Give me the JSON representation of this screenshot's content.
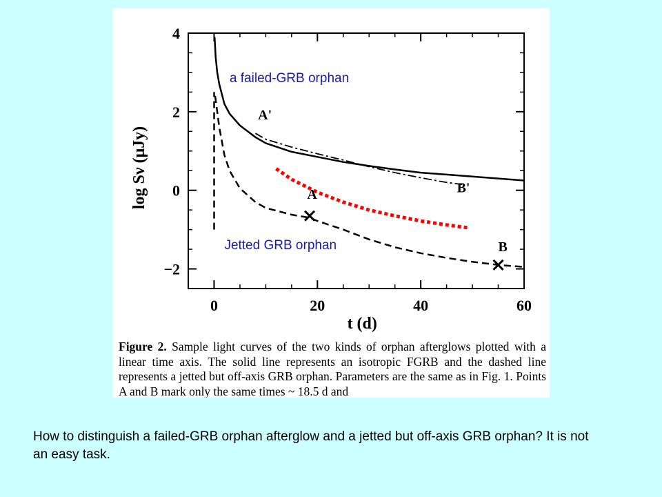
{
  "chart_data": {
    "type": "line",
    "xlabel": "t (d)",
    "ylabel": "log Sν (μJy)",
    "xlim": [
      -5,
      60
    ],
    "ylim": [
      -2.5,
      4
    ],
    "xticks": [
      0,
      20,
      40,
      60
    ],
    "yticks": [
      -2,
      0,
      2,
      4
    ],
    "series": [
      {
        "style": "solid",
        "x": [
          0.1,
          0.3,
          0.6,
          1.0,
          2.0,
          3.0,
          5.0,
          8.0,
          10,
          15,
          20,
          25,
          30,
          35,
          40,
          45,
          50,
          55,
          60
        ],
        "y": [
          3.9,
          3.4,
          3.0,
          2.7,
          2.2,
          1.95,
          1.65,
          1.35,
          1.2,
          0.98,
          0.85,
          0.72,
          0.62,
          0.53,
          0.45,
          0.4,
          0.35,
          0.3,
          0.25
        ]
      },
      {
        "style": "dashed",
        "x": [
          0.2,
          0.6,
          1.0,
          2.0,
          3.0,
          5.0,
          8.0,
          10,
          15,
          18.5,
          20,
          25,
          30,
          35,
          40,
          45,
          50,
          55,
          60
        ],
        "y": [
          2.4,
          2.0,
          1.6,
          0.9,
          0.5,
          0.05,
          -0.3,
          -0.45,
          -0.62,
          -0.7,
          -0.78,
          -1.0,
          -1.25,
          -1.45,
          -1.6,
          -1.72,
          -1.82,
          -1.9,
          -1.95
        ]
      },
      {
        "style": "dashed",
        "x": [
          0,
          0
        ],
        "y": [
          -1.0,
          2.5
        ]
      },
      {
        "style": "dash-dot",
        "x": [
          8,
          10,
          15,
          20,
          25,
          30,
          35,
          40,
          45,
          48
        ],
        "y": [
          1.45,
          1.3,
          1.1,
          0.93,
          0.77,
          0.6,
          0.45,
          0.32,
          0.2,
          0.15
        ]
      },
      {
        "style": "dotted",
        "color": "#ff0000",
        "x": [
          12,
          15,
          20,
          25,
          30,
          35,
          40,
          45,
          49
        ],
        "y": [
          0.55,
          0.28,
          -0.05,
          -0.3,
          -0.5,
          -0.65,
          -0.78,
          -0.88,
          -0.95
        ]
      }
    ],
    "markers": [
      {
        "label": "A",
        "x": 18.5,
        "y": -0.65
      },
      {
        "label": "B",
        "x": 55,
        "y": -1.9
      }
    ],
    "curve_labels": [
      {
        "text": "A'",
        "x": 8.5,
        "y": 1.8
      },
      {
        "text": "B'",
        "x": 47,
        "y": -0.05
      },
      {
        "text": "A",
        "x": 18,
        "y": -0.22
      },
      {
        "text": "B",
        "x": 55,
        "y": -1.55
      }
    ],
    "annotations": [
      {
        "text": "a failed-GRB orphan",
        "x": 3,
        "y": 2.75
      },
      {
        "text": "Jetted GRB orphan",
        "x": 2,
        "y": -1.5
      }
    ]
  },
  "caption": {
    "label": "Figure 2.",
    "text": " Sample light curves of the two kinds of orphan afterglows plotted with a linear time axis. The solid line represents an isotropic FGRB and the dashed line represents a jetted but off-axis GRB orphan. Parameters are the same as in Fig. 1. Points A and B mark only the same times ~ 18.5 d and"
  },
  "footer": {
    "text": "How to distinguish a failed-GRB orphan afterglow and a jetted but off-axis GRB orphan? It is not an easy task."
  }
}
